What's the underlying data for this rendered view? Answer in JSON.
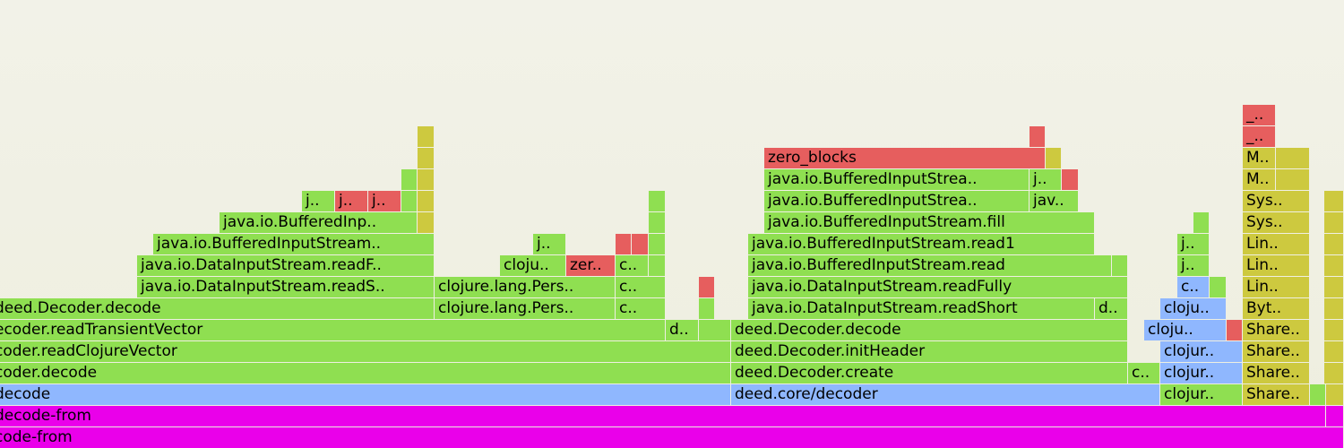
{
  "chart_data": {
    "type": "flamegraph",
    "title": "",
    "colors": {
      "g": "#8fdf51",
      "r": "#e65e5e",
      "y": "#cdc93f",
      "b": "#8fb7fe",
      "m": "#ea00ea",
      "o": "#84d84e"
    },
    "frames": [
      {
        "level": 0,
        "start": -10,
        "end": 1500,
        "label": "code-from",
        "color": "m"
      },
      {
        "level": 1,
        "start": -10,
        "end": 1480,
        "label": "decode-from",
        "color": "m"
      },
      {
        "level": 1,
        "start": 1480,
        "end": 1500,
        "label": "",
        "color": "m"
      },
      {
        "level": 2,
        "start": -10,
        "end": 816,
        "label": "decode",
        "color": "b"
      },
      {
        "level": 2,
        "start": 816,
        "end": 1295,
        "label": "deed.core/decoder",
        "color": "b"
      },
      {
        "level": 2,
        "start": 1295,
        "end": 1387,
        "label": "clojur..",
        "color": "g"
      },
      {
        "level": 2,
        "start": 1387,
        "end": 1462,
        "label": "Share..",
        "color": "y"
      },
      {
        "level": 2,
        "start": 1462,
        "end": 1480,
        "label": "",
        "color": "g"
      },
      {
        "level": 2,
        "start": 1480,
        "end": 1500,
        "label": "",
        "color": "y"
      },
      {
        "level": 3,
        "start": -10,
        "end": 816,
        "label": "coder.decode",
        "color": "g"
      },
      {
        "level": 3,
        "start": 816,
        "end": 1259,
        "label": "deed.Decoder.create",
        "color": "g"
      },
      {
        "level": 3,
        "start": 1259,
        "end": 1295,
        "label": "c..",
        "color": "g"
      },
      {
        "level": 3,
        "start": 1295,
        "end": 1387,
        "label": "clojur..",
        "color": "b"
      },
      {
        "level": 3,
        "start": 1387,
        "end": 1462,
        "label": "Share..",
        "color": "y"
      },
      {
        "level": 3,
        "start": 1478,
        "end": 1500,
        "label": "",
        "color": "y"
      },
      {
        "level": 4,
        "start": -10,
        "end": 816,
        "label": "coder.readClojureVector",
        "color": "g"
      },
      {
        "level": 4,
        "start": 816,
        "end": 1259,
        "label": "deed.Decoder.initHeader",
        "color": "g"
      },
      {
        "level": 4,
        "start": 1295,
        "end": 1387,
        "label": "clojur..",
        "color": "b"
      },
      {
        "level": 4,
        "start": 1387,
        "end": 1462,
        "label": "Share..",
        "color": "y"
      },
      {
        "level": 4,
        "start": 1478,
        "end": 1500,
        "label": "",
        "color": "y"
      },
      {
        "level": 5,
        "start": -10,
        "end": 743,
        "label": "ecoder.readTransientVector",
        "color": "g"
      },
      {
        "level": 5,
        "start": 743,
        "end": 780,
        "label": "d..",
        "color": "g"
      },
      {
        "level": 5,
        "start": 780,
        "end": 816,
        "label": "",
        "color": "g"
      },
      {
        "level": 5,
        "start": 816,
        "end": 1259,
        "label": "deed.Decoder.decode",
        "color": "g"
      },
      {
        "level": 5,
        "start": 1277,
        "end": 1369,
        "label": "cloju..",
        "color": "b"
      },
      {
        "level": 5,
        "start": 1369,
        "end": 1387,
        "label": "",
        "color": "r"
      },
      {
        "level": 5,
        "start": 1387,
        "end": 1462,
        "label": "Share..",
        "color": "y"
      },
      {
        "level": 5,
        "start": 1478,
        "end": 1500,
        "label": "",
        "color": "y"
      },
      {
        "level": 6,
        "start": -10,
        "end": 485,
        "label": "deed.Decoder.decode",
        "color": "g"
      },
      {
        "level": 6,
        "start": 485,
        "end": 687,
        "label": "clojure.lang.Pers..",
        "color": "g"
      },
      {
        "level": 6,
        "start": 687,
        "end": 743,
        "label": "c..",
        "color": "g"
      },
      {
        "level": 6,
        "start": 780,
        "end": 798,
        "label": "",
        "color": "g"
      },
      {
        "level": 6,
        "start": 835,
        "end": 1222,
        "label": "java.io.DataInputStream.readShort",
        "color": "g"
      },
      {
        "level": 6,
        "start": 1222,
        "end": 1259,
        "label": "d..",
        "color": "g"
      },
      {
        "level": 6,
        "start": 1295,
        "end": 1369,
        "label": "cloju..",
        "color": "b"
      },
      {
        "level": 6,
        "start": 1387,
        "end": 1462,
        "label": "Byt..",
        "color": "y"
      },
      {
        "level": 6,
        "start": 1478,
        "end": 1500,
        "label": "",
        "color": "y"
      },
      {
        "level": 7,
        "start": 153,
        "end": 485,
        "label": "java.io.DataInputStream.readS..",
        "color": "g"
      },
      {
        "level": 7,
        "start": 485,
        "end": 687,
        "label": "clojure.lang.Pers..",
        "color": "g"
      },
      {
        "level": 7,
        "start": 687,
        "end": 743,
        "label": "c..",
        "color": "g"
      },
      {
        "level": 7,
        "start": 780,
        "end": 798,
        "label": "",
        "color": "r"
      },
      {
        "level": 7,
        "start": 835,
        "end": 1259,
        "label": "java.io.DataInputStream.readFully",
        "color": "g"
      },
      {
        "level": 7,
        "start": 1314,
        "end": 1350,
        "label": "c..",
        "color": "b"
      },
      {
        "level": 7,
        "start": 1350,
        "end": 1369,
        "label": "",
        "color": "g"
      },
      {
        "level": 7,
        "start": 1387,
        "end": 1462,
        "label": "Lin..",
        "color": "y"
      },
      {
        "level": 7,
        "start": 1478,
        "end": 1500,
        "label": "",
        "color": "y"
      },
      {
        "level": 8,
        "start": 153,
        "end": 485,
        "label": "java.io.DataInputStream.readF..",
        "color": "g"
      },
      {
        "level": 8,
        "start": 558,
        "end": 632,
        "label": "cloju..",
        "color": "g"
      },
      {
        "level": 8,
        "start": 632,
        "end": 687,
        "label": "zer..",
        "color": "r"
      },
      {
        "level": 8,
        "start": 687,
        "end": 724,
        "label": "c..",
        "color": "g"
      },
      {
        "level": 8,
        "start": 724,
        "end": 743,
        "label": "",
        "color": "g"
      },
      {
        "level": 8,
        "start": 835,
        "end": 1241,
        "label": "java.io.BufferedInputStream.read",
        "color": "g"
      },
      {
        "level": 8,
        "start": 1241,
        "end": 1259,
        "label": "",
        "color": "g"
      },
      {
        "level": 8,
        "start": 1314,
        "end": 1350,
        "label": "j..",
        "color": "g"
      },
      {
        "level": 8,
        "start": 1387,
        "end": 1462,
        "label": "Lin..",
        "color": "y"
      },
      {
        "level": 8,
        "start": 1478,
        "end": 1500,
        "label": "",
        "color": "y"
      },
      {
        "level": 9,
        "start": 171,
        "end": 485,
        "label": "java.io.BufferedInputStream..",
        "color": "g"
      },
      {
        "level": 9,
        "start": 595,
        "end": 632,
        "label": "j..",
        "color": "g"
      },
      {
        "level": 9,
        "start": 687,
        "end": 705,
        "label": "",
        "color": "r"
      },
      {
        "level": 9,
        "start": 705,
        "end": 724,
        "label": "",
        "color": "r"
      },
      {
        "level": 9,
        "start": 724,
        "end": 743,
        "label": "",
        "color": "g"
      },
      {
        "level": 9,
        "start": 835,
        "end": 1222,
        "label": "java.io.BufferedInputStream.read1",
        "color": "g"
      },
      {
        "level": 9,
        "start": 1314,
        "end": 1350,
        "label": "j..",
        "color": "g"
      },
      {
        "level": 9,
        "start": 1387,
        "end": 1462,
        "label": "Lin..",
        "color": "y"
      },
      {
        "level": 9,
        "start": 1478,
        "end": 1500,
        "label": "",
        "color": "y"
      },
      {
        "level": 10,
        "start": 245,
        "end": 466,
        "label": "java.io.BufferedInp..",
        "color": "g"
      },
      {
        "level": 10,
        "start": 466,
        "end": 485,
        "label": "",
        "color": "y"
      },
      {
        "level": 10,
        "start": 724,
        "end": 743,
        "label": "",
        "color": "g"
      },
      {
        "level": 10,
        "start": 853,
        "end": 1222,
        "label": "java.io.BufferedInputStream.fill",
        "color": "g"
      },
      {
        "level": 10,
        "start": 1332,
        "end": 1350,
        "label": "",
        "color": "g"
      },
      {
        "level": 10,
        "start": 1387,
        "end": 1462,
        "label": "Sys..",
        "color": "y"
      },
      {
        "level": 10,
        "start": 1478,
        "end": 1500,
        "label": "",
        "color": "y"
      },
      {
        "level": 11,
        "start": 337,
        "end": 374,
        "label": "j..",
        "color": "g"
      },
      {
        "level": 11,
        "start": 374,
        "end": 411,
        "label": "j..",
        "color": "r"
      },
      {
        "level": 11,
        "start": 411,
        "end": 448,
        "label": "j..",
        "color": "r"
      },
      {
        "level": 11,
        "start": 448,
        "end": 466,
        "label": "",
        "color": "g"
      },
      {
        "level": 11,
        "start": 466,
        "end": 485,
        "label": "",
        "color": "y"
      },
      {
        "level": 11,
        "start": 724,
        "end": 743,
        "label": "",
        "color": "g"
      },
      {
        "level": 11,
        "start": 853,
        "end": 1149,
        "label": "java.io.BufferedInputStrea..",
        "color": "g"
      },
      {
        "level": 11,
        "start": 1149,
        "end": 1204,
        "label": "jav..",
        "color": "g"
      },
      {
        "level": 11,
        "start": 1387,
        "end": 1462,
        "label": "Sys..",
        "color": "y"
      },
      {
        "level": 11,
        "start": 1478,
        "end": 1500,
        "label": "",
        "color": "y"
      },
      {
        "level": 12,
        "start": 448,
        "end": 466,
        "label": "",
        "color": "g"
      },
      {
        "level": 12,
        "start": 466,
        "end": 485,
        "label": "",
        "color": "y"
      },
      {
        "level": 12,
        "start": 853,
        "end": 1149,
        "label": "java.io.BufferedInputStrea..",
        "color": "g"
      },
      {
        "level": 12,
        "start": 1149,
        "end": 1185,
        "label": "j..",
        "color": "g"
      },
      {
        "level": 12,
        "start": 1185,
        "end": 1204,
        "label": "",
        "color": "r"
      },
      {
        "level": 12,
        "start": 1387,
        "end": 1424,
        "label": "M..",
        "color": "y"
      },
      {
        "level": 12,
        "start": 1424,
        "end": 1462,
        "label": "",
        "color": "y"
      },
      {
        "level": 13,
        "start": 466,
        "end": 485,
        "label": "",
        "color": "y"
      },
      {
        "level": 13,
        "start": 853,
        "end": 1167,
        "label": "zero_blocks",
        "color": "r"
      },
      {
        "level": 13,
        "start": 1167,
        "end": 1185,
        "label": "",
        "color": "y"
      },
      {
        "level": 13,
        "start": 1387,
        "end": 1424,
        "label": "M..",
        "color": "y"
      },
      {
        "level": 13,
        "start": 1424,
        "end": 1462,
        "label": "",
        "color": "y"
      },
      {
        "level": 14,
        "start": 466,
        "end": 485,
        "label": "",
        "color": "y"
      },
      {
        "level": 14,
        "start": 1149,
        "end": 1167,
        "label": "",
        "color": "r"
      },
      {
        "level": 14,
        "start": 1387,
        "end": 1424,
        "label": "_..",
        "color": "r"
      },
      {
        "level": 15,
        "start": 1387,
        "end": 1424,
        "label": "_..",
        "color": "r"
      }
    ]
  }
}
